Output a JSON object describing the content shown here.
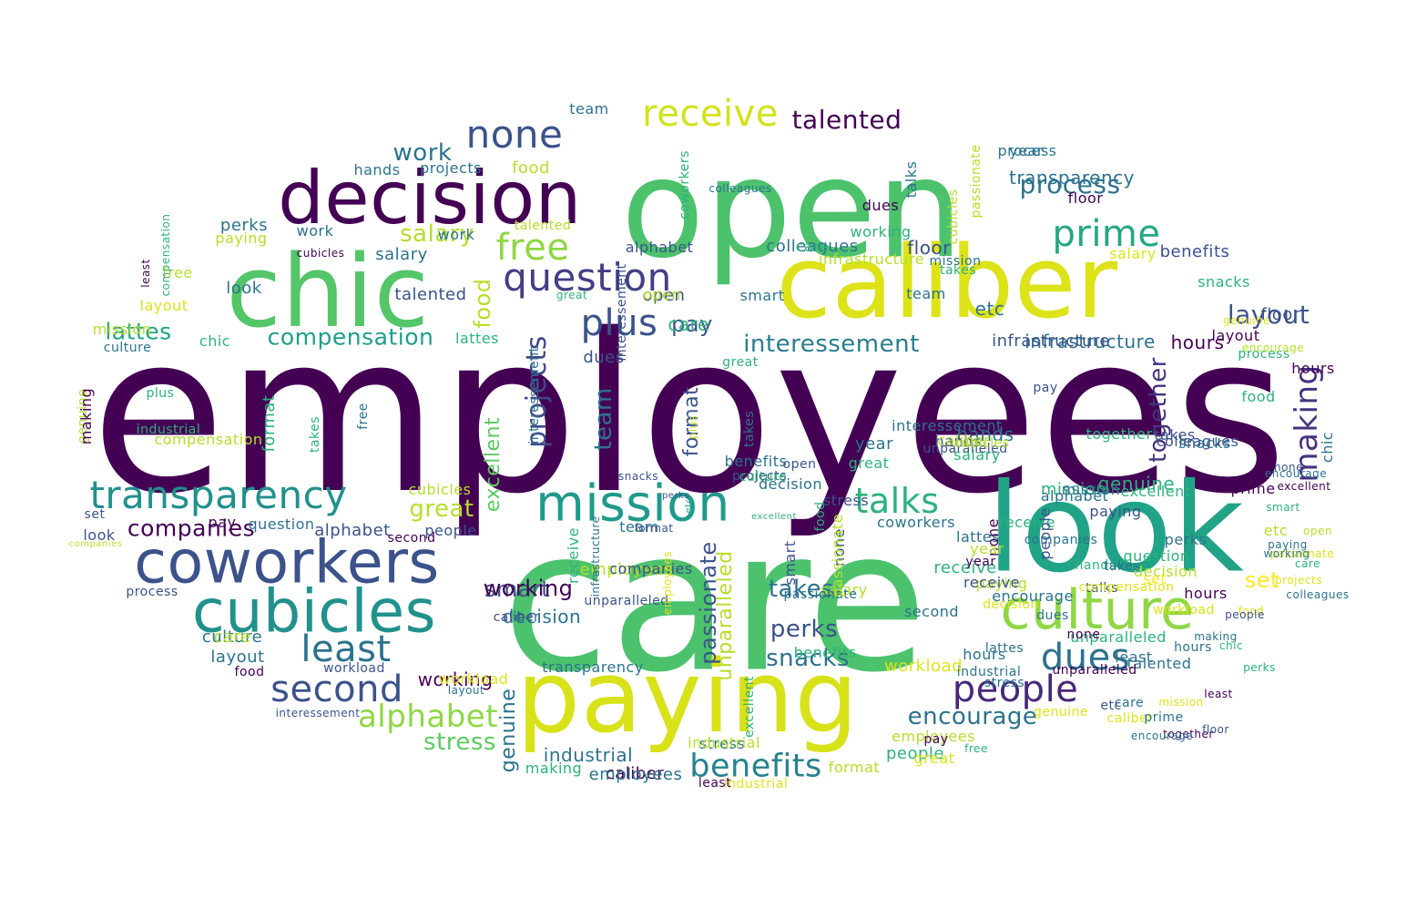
{
  "title": "",
  "colors": {
    "background": "#ffffff",
    "palette_viridis": [
      "#440154",
      "#3b528b",
      "#21918c",
      "#5ec962",
      "#fde725"
    ]
  },
  "words": [
    {
      "text": "employees",
      "color": "#440154"
    },
    {
      "text": "care",
      "color": "#4cc26c"
    },
    {
      "text": "open",
      "color": "#4cc26c"
    },
    {
      "text": "caliber",
      "color": "#dde318"
    },
    {
      "text": "look",
      "color": "#20a386"
    },
    {
      "text": "chic",
      "color": "#54c568"
    },
    {
      "text": "paying",
      "color": "#d8e219"
    },
    {
      "text": "decision",
      "color": "#440154"
    },
    {
      "text": "coworkers",
      "color": "#3b528b"
    },
    {
      "text": "cubicles",
      "color": "#21918c"
    },
    {
      "text": "mission",
      "color": "#1f9a8a"
    },
    {
      "text": "culture",
      "color": "#8fd744"
    },
    {
      "text": "transparency",
      "color": "#21908d"
    },
    {
      "text": "question",
      "color": "#433e85"
    },
    {
      "text": "none",
      "color": "#3b528b"
    },
    {
      "text": "receive",
      "color": "#d2e21b"
    },
    {
      "text": "prime",
      "color": "#22a884"
    },
    {
      "text": "free",
      "color": "#8fd744"
    },
    {
      "text": "plus",
      "color": "#3b528b"
    },
    {
      "text": "people",
      "color": "#482878"
    },
    {
      "text": "dues",
      "color": "#2c728e"
    },
    {
      "text": "second",
      "color": "#3b528b"
    },
    {
      "text": "least",
      "color": "#2c728e"
    },
    {
      "text": "talks",
      "color": "#2db27d"
    },
    {
      "text": "benefits",
      "color": "#26828e"
    },
    {
      "text": "alphabet",
      "color": "#8fd744"
    },
    {
      "text": "making",
      "color": "#46327e"
    },
    {
      "text": "projects",
      "color": "#3e4a89"
    },
    {
      "text": "layout",
      "color": "#3b528b"
    },
    {
      "text": "talented",
      "color": "#440154"
    },
    {
      "text": "process",
      "color": "#2c728e"
    },
    {
      "text": "interessement",
      "color": "#287d8e"
    },
    {
      "text": "compensation",
      "color": "#1f9e89"
    },
    {
      "text": "lattes",
      "color": "#20a386"
    },
    {
      "text": "salary",
      "color": "#b5de2b"
    },
    {
      "text": "companies",
      "color": "#440154"
    },
    {
      "text": "great",
      "color": "#b5de2b"
    },
    {
      "text": "encourage",
      "color": "#2c728e"
    },
    {
      "text": "together",
      "color": "#46327e"
    },
    {
      "text": "takes",
      "color": "#2c728e"
    },
    {
      "text": "perks",
      "color": "#3b528b"
    },
    {
      "text": "snacks",
      "color": "#2c728e"
    },
    {
      "text": "stress",
      "color": "#5ec962"
    },
    {
      "text": "passionate",
      "color": "#3b528b"
    },
    {
      "text": "team",
      "color": "#2c728e"
    },
    {
      "text": "excellent",
      "color": "#5ec962"
    },
    {
      "text": "food",
      "color": "#b5de2b"
    },
    {
      "text": "pay",
      "color": "#3b528b"
    },
    {
      "text": "work",
      "color": "#2c728e"
    },
    {
      "text": "floor",
      "color": "#3b528b"
    },
    {
      "text": "infrastructure",
      "color": "#2c728e"
    },
    {
      "text": "hours",
      "color": "#440154"
    },
    {
      "text": "set",
      "color": "#fde725"
    },
    {
      "text": "smart",
      "color": "#3b528b"
    },
    {
      "text": "unparalleled",
      "color": "#b5de2b"
    },
    {
      "text": "etc",
      "color": "#2c728e"
    },
    {
      "text": "format",
      "color": "#3b528b"
    },
    {
      "text": "year",
      "color": "#2c728e"
    },
    {
      "text": "genuine",
      "color": "#2db27d"
    },
    {
      "text": "working",
      "color": "#440154"
    },
    {
      "text": "industrial",
      "color": "#2c728e"
    },
    {
      "text": "workload",
      "color": "#dde318"
    },
    {
      "text": "hands",
      "color": "#2c728e"
    },
    {
      "text": "colleagues",
      "color": "#2c728e"
    },
    {
      "text": "caliber",
      "color": "#440154"
    },
    {
      "text": "employees",
      "color": "#b5de2b"
    },
    {
      "text": "decision",
      "color": "#2c728e"
    },
    {
      "text": "mission",
      "color": "#2db27d"
    },
    {
      "text": "culture",
      "color": "#2c728e"
    },
    {
      "text": "receive",
      "color": "#2db27d"
    },
    {
      "text": "people",
      "color": "#2db27d"
    },
    {
      "text": "employees",
      "color": "#b5de2b"
    },
    {
      "text": "format",
      "color": "#b5de2b"
    },
    {
      "text": "industrial",
      "color": "#dde318"
    },
    {
      "text": "stress",
      "color": "#2c728e"
    },
    {
      "text": "hours",
      "color": "#440154"
    },
    {
      "text": "encourage",
      "color": "#2c728e"
    },
    {
      "text": "paying",
      "color": "#b5de2b"
    },
    {
      "text": "question",
      "color": "#2db27d"
    },
    {
      "text": "hours",
      "color": "#2c728e"
    },
    {
      "text": "least",
      "color": "#2c728e"
    },
    {
      "text": "etc",
      "color": "#b5de2b"
    },
    {
      "text": "decision",
      "color": "#b5de2b"
    },
    {
      "text": "unparalleled",
      "color": "#2db27d"
    },
    {
      "text": "set",
      "color": "#fde725"
    },
    {
      "text": "perks",
      "color": "#2c728e"
    },
    {
      "text": "benefits",
      "color": "#2db27d"
    },
    {
      "text": "second",
      "color": "#2c728e"
    },
    {
      "text": "snacks",
      "color": "#2c728e"
    },
    {
      "text": "takes",
      "color": "#3b528b"
    },
    {
      "text": "coworkers",
      "color": "#2c728e"
    },
    {
      "text": "prime",
      "color": "#440154"
    },
    {
      "text": "lattes",
      "color": "#2c728e"
    },
    {
      "text": "receive",
      "color": "#3b528b"
    },
    {
      "text": "excellent",
      "color": "#2db27d"
    },
    {
      "text": "mission",
      "color": "#2c728e"
    },
    {
      "text": "together",
      "color": "#2db27d"
    },
    {
      "text": "hands",
      "color": "#3b528b"
    },
    {
      "text": "great",
      "color": "#2db27d"
    },
    {
      "text": "none",
      "color": "#440154"
    },
    {
      "text": "year",
      "color": "#2c728e"
    },
    {
      "text": "dues",
      "color": "#3b528b"
    },
    {
      "text": "open",
      "color": "#3b528b"
    },
    {
      "text": "care",
      "color": "#2db27d"
    },
    {
      "text": "pay",
      "color": "#3b528b"
    },
    {
      "text": "interessement",
      "color": "#2c728e"
    },
    {
      "text": "infrastructure",
      "color": "#3b528b"
    },
    {
      "text": "benefits",
      "color": "#3b528b"
    },
    {
      "text": "floor",
      "color": "#3b528b"
    },
    {
      "text": "layout",
      "color": "#440154"
    },
    {
      "text": "process",
      "color": "#2db27d"
    },
    {
      "text": "hours",
      "color": "#440154"
    },
    {
      "text": "food",
      "color": "#2db27d"
    },
    {
      "text": "chic",
      "color": "#2c728e"
    },
    {
      "text": "colleagues",
      "color": "#3b528b"
    },
    {
      "text": "snacks",
      "color": "#2db27d"
    },
    {
      "text": "encourage",
      "color": "#b5de2b"
    },
    {
      "text": "genuine",
      "color": "#dde318"
    },
    {
      "text": "salary",
      "color": "#dde318"
    },
    {
      "text": "infrastructure",
      "color": "#b5de2b"
    },
    {
      "text": "team",
      "color": "#2c728e"
    },
    {
      "text": "takes",
      "color": "#2db27d"
    },
    {
      "text": "floor",
      "color": "#440154"
    },
    {
      "text": "transparency",
      "color": "#2c728e"
    },
    {
      "text": "process",
      "color": "#2c728e"
    },
    {
      "text": "dues",
      "color": "#440154"
    },
    {
      "text": "talks",
      "color": "#2c728e"
    },
    {
      "text": "cubicles",
      "color": "#b5de2b"
    },
    {
      "text": "alphabet",
      "color": "#3b528b"
    },
    {
      "text": "mission",
      "color": "#2c728e"
    },
    {
      "text": "colleagues",
      "color": "#2c728e"
    },
    {
      "text": "smart",
      "color": "#2c728e"
    },
    {
      "text": "open",
      "color": "#b5de2b"
    },
    {
      "text": "care",
      "color": "#2db27d"
    },
    {
      "text": "coworkers",
      "color": "#2db27d"
    },
    {
      "text": "interessement",
      "color": "#3b528b"
    },
    {
      "text": "working",
      "color": "#2db27d"
    },
    {
      "text": "passionate",
      "color": "#b5de2b"
    },
    {
      "text": "team",
      "color": "#2c728e"
    },
    {
      "text": "food",
      "color": "#b5de2b"
    },
    {
      "text": "projects",
      "color": "#2c728e"
    },
    {
      "text": "paying",
      "color": "#b5de2b"
    },
    {
      "text": "hands",
      "color": "#2c728e"
    },
    {
      "text": "work",
      "color": "#2c728e"
    },
    {
      "text": "talented",
      "color": "#b5de2b"
    },
    {
      "text": "cubicles",
      "color": "#440154"
    },
    {
      "text": "salary",
      "color": "#2c728e"
    },
    {
      "text": "free",
      "color": "#b5de2b"
    },
    {
      "text": "compensation",
      "color": "#2db27d"
    },
    {
      "text": "perks",
      "color": "#2c728e"
    },
    {
      "text": "look",
      "color": "#2c728e"
    },
    {
      "text": "least",
      "color": "#440154"
    },
    {
      "text": "work",
      "color": "#2c728e"
    },
    {
      "text": "great",
      "color": "#2db27d"
    },
    {
      "text": "layout",
      "color": "#dde318"
    },
    {
      "text": "mission",
      "color": "#b5de2b"
    },
    {
      "text": "culture",
      "color": "#2c728e"
    },
    {
      "text": "chic",
      "color": "#2db27d"
    },
    {
      "text": "lattes",
      "color": "#2db27d"
    },
    {
      "text": "talented",
      "color": "#3b528b"
    },
    {
      "text": "genuine",
      "color": "#b5de2b"
    },
    {
      "text": "making",
      "color": "#440154"
    },
    {
      "text": "plus",
      "color": "#2db27d"
    },
    {
      "text": "industrial",
      "color": "#2db27d"
    },
    {
      "text": "compensation",
      "color": "#b5de2b"
    },
    {
      "text": "format",
      "color": "#2db27d"
    },
    {
      "text": "takes",
      "color": "#2db27d"
    },
    {
      "text": "free",
      "color": "#2c728e"
    },
    {
      "text": "cubicles",
      "color": "#b5de2b"
    },
    {
      "text": "question",
      "color": "#2c728e"
    },
    {
      "text": "alphabet",
      "color": "#3b528b"
    },
    {
      "text": "second",
      "color": "#440154"
    },
    {
      "text": "people",
      "color": "#3b528b"
    },
    {
      "text": "pay",
      "color": "#440154"
    },
    {
      "text": "set",
      "color": "#3b528b"
    },
    {
      "text": "look",
      "color": "#3b528b"
    },
    {
      "text": "companies",
      "color": "#b5de2b"
    },
    {
      "text": "process",
      "color": "#3b528b"
    },
    {
      "text": "care",
      "color": "#b5de2b"
    },
    {
      "text": "layout",
      "color": "#2c728e"
    },
    {
      "text": "food",
      "color": "#440154"
    },
    {
      "text": "workload",
      "color": "#3b528b"
    },
    {
      "text": "workload",
      "color": "#dde318"
    },
    {
      "text": "layout",
      "color": "#2c728e"
    },
    {
      "text": "interessement",
      "color": "#3b528b"
    },
    {
      "text": "genuine",
      "color": "#2c728e"
    },
    {
      "text": "making",
      "color": "#2db27d"
    },
    {
      "text": "employees",
      "color": "#2c728e"
    },
    {
      "text": "least",
      "color": "#440154"
    },
    {
      "text": "transparency",
      "color": "#2c728e"
    },
    {
      "text": "receive",
      "color": "#2db27d"
    },
    {
      "text": "working",
      "color": "#440154"
    },
    {
      "text": "caliber",
      "color": "#3b528b"
    },
    {
      "text": "industrial",
      "color": "#b5de2b"
    },
    {
      "text": "excellent",
      "color": "#2db27d"
    },
    {
      "text": "companies",
      "color": "#3b528b"
    },
    {
      "text": "smart",
      "color": "#3b528b"
    },
    {
      "text": "none",
      "color": "#3b528b"
    },
    {
      "text": "decision",
      "color": "#2c728e"
    },
    {
      "text": "stress",
      "color": "#3b528b"
    },
    {
      "text": "salary",
      "color": "#b5de2b"
    },
    {
      "text": "passionate",
      "color": "#2c728e"
    },
    {
      "text": "unparalleled",
      "color": "#3b528b"
    },
    {
      "text": "employees",
      "color": "#dde318"
    },
    {
      "text": "perks",
      "color": "#3b528b"
    },
    {
      "text": "takes",
      "color": "#2c728e"
    },
    {
      "text": "snacks",
      "color": "#3b528b"
    },
    {
      "text": "benefits",
      "color": "#2c728e"
    },
    {
      "text": "great",
      "color": "#2db27d"
    },
    {
      "text": "team",
      "color": "#2c728e"
    },
    {
      "text": "plus",
      "color": "#b5de2b"
    },
    {
      "text": "projects",
      "color": "#3b528b"
    },
    {
      "text": "excellent",
      "color": "#2db27d"
    },
    {
      "text": "food",
      "color": "#2db27d"
    },
    {
      "text": "open",
      "color": "#3b528b"
    },
    {
      "text": "format",
      "color": "#3b528b"
    },
    {
      "text": "etc",
      "color": "#2db27d"
    },
    {
      "text": "infrastructure",
      "color": "#2c728e"
    },
    {
      "text": "passionate",
      "color": "#b5de2b"
    },
    {
      "text": "culture",
      "color": "#2db27d"
    },
    {
      "text": "caliber",
      "color": "#b5de2b"
    },
    {
      "text": "unparalleled",
      "color": "#3b528b"
    },
    {
      "text": "interessement",
      "color": "#2c728e"
    },
    {
      "text": "salary",
      "color": "#2db27d"
    },
    {
      "text": "cubicles",
      "color": "#b5de2b"
    },
    {
      "text": "alphabet",
      "color": "#2c728e"
    },
    {
      "text": "receive",
      "color": "#2db27d"
    },
    {
      "text": "paying",
      "color": "#3b528b"
    },
    {
      "text": "people",
      "color": "#3b528b"
    },
    {
      "text": "companies",
      "color": "#2c728e"
    },
    {
      "text": "year",
      "color": "#b5de2b"
    },
    {
      "text": "year",
      "color": "#440154"
    },
    {
      "text": "hands",
      "color": "#2db27d"
    },
    {
      "text": "talks",
      "color": "#3b528b"
    },
    {
      "text": "compensation",
      "color": "#dde318"
    },
    {
      "text": "takes",
      "color": "#2c728e"
    },
    {
      "text": "dues",
      "color": "#2c728e"
    },
    {
      "text": "talented",
      "color": "#2c728e"
    },
    {
      "text": "lattes",
      "color": "#2c728e"
    },
    {
      "text": "none",
      "color": "#440154"
    },
    {
      "text": "unparalleled",
      "color": "#440154"
    },
    {
      "text": "care",
      "color": "#2c728e"
    },
    {
      "text": "caliber",
      "color": "#dde318"
    },
    {
      "text": "prime",
      "color": "#2c728e"
    },
    {
      "text": "together",
      "color": "#440154"
    },
    {
      "text": "free",
      "color": "#2db27d"
    },
    {
      "text": "pay",
      "color": "#440154"
    },
    {
      "text": "great",
      "color": "#dde318"
    },
    {
      "text": "industrial",
      "color": "#2c728e"
    },
    {
      "text": "stress",
      "color": "#2c728e"
    },
    {
      "text": "decision",
      "color": "#dde318"
    },
    {
      "text": "workload",
      "color": "#dde318"
    },
    {
      "text": "hours",
      "color": "#2c728e"
    },
    {
      "text": "making",
      "color": "#2c728e"
    },
    {
      "text": "food",
      "color": "#dde318"
    },
    {
      "text": "least",
      "color": "#440154"
    },
    {
      "text": "etc",
      "color": "#3b528b"
    },
    {
      "text": "genuine",
      "color": "#dde318"
    },
    {
      "text": "encourage",
      "color": "#2c728e"
    },
    {
      "text": "floor",
      "color": "#3b528b"
    },
    {
      "text": "mission",
      "color": "#dde318"
    },
    {
      "text": "chic",
      "color": "#2db27d"
    },
    {
      "text": "perks",
      "color": "#2db27d"
    },
    {
      "text": "projects",
      "color": "#dde318"
    },
    {
      "text": "passionate",
      "color": "#dde318"
    },
    {
      "text": "colleagues",
      "color": "#2c728e"
    },
    {
      "text": "people",
      "color": "#3b528b"
    },
    {
      "text": "open",
      "color": "#b5de2b"
    },
    {
      "text": "care",
      "color": "#2db27d"
    },
    {
      "text": "paying",
      "color": "#2c728e"
    },
    {
      "text": "working",
      "color": "#2c728e"
    },
    {
      "text": "smart",
      "color": "#2db27d"
    },
    {
      "text": "excellent",
      "color": "#440154"
    },
    {
      "text": "none",
      "color": "#3b528b"
    },
    {
      "text": "encourage",
      "color": "#2c728e"
    },
    {
      "text": "floor",
      "color": "#3b528b"
    },
    {
      "text": "transparency",
      "color": "#2c728e"
    },
    {
      "text": "team",
      "color": "#440154"
    },
    {
      "text": "colleagues",
      "color": "#2c728e"
    },
    {
      "text": "format",
      "color": "#2db27d"
    },
    {
      "text": "plus",
      "color": "#2db27d"
    },
    {
      "text": "set",
      "color": "#2db27d"
    },
    {
      "text": "companies",
      "color": "#2db27d"
    },
    {
      "text": "lattes",
      "color": "#440154"
    },
    {
      "text": "interessement",
      "color": "#b5de2b"
    },
    {
      "text": "free",
      "color": "#2db27d"
    },
    {
      "text": "infrastructure",
      "color": "#2c728e"
    },
    {
      "text": "second",
      "color": "#3b528b"
    },
    {
      "text": "salary",
      "color": "#3b528b"
    },
    {
      "text": "hands",
      "color": "#2c728e"
    },
    {
      "text": "work",
      "color": "#2db27d"
    },
    {
      "text": "together",
      "color": "#2c728e"
    },
    {
      "text": "talks",
      "color": "#3b528b"
    },
    {
      "text": "culture",
      "color": "#2db27d"
    },
    {
      "text": "talented",
      "color": "#440154"
    },
    {
      "text": "compensation",
      "color": "#b5de2b"
    },
    {
      "text": "chic",
      "color": "#3b528b"
    },
    {
      "text": "prime",
      "color": "#2c728e"
    },
    {
      "text": "stress",
      "color": "#2db27d"
    },
    {
      "text": "food",
      "color": "#b5de2b"
    },
    {
      "text": "process",
      "color": "#dde318"
    }
  ]
}
